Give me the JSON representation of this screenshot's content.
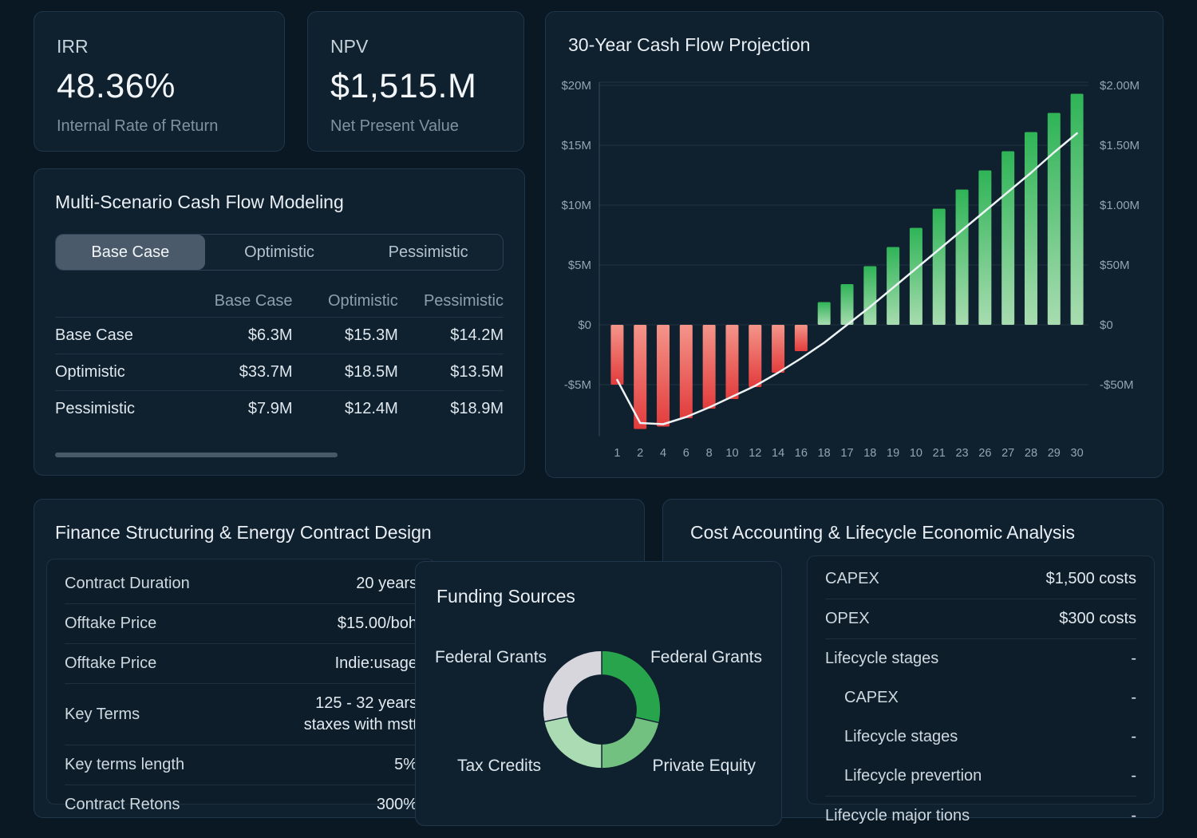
{
  "stat_cards": [
    {
      "label": "IRR",
      "value": "48.36%",
      "sub": "Internal Rate of Return"
    },
    {
      "label": "NPV",
      "value": "$1,515.M",
      "sub": "Net Present Value"
    }
  ],
  "scenario_panel": {
    "title": "Multi-Scenario Cash Flow Modeling",
    "tabs": [
      {
        "label": "Base Case",
        "active": true
      },
      {
        "label": "Optimistic",
        "active": false
      },
      {
        "label": "Pessimistic",
        "active": false
      }
    ],
    "table": {
      "columns": [
        "Base Case",
        "Optimistic",
        "Pessimistic"
      ],
      "rows": [
        {
          "label": "Base Case",
          "values": [
            "$6.3M",
            "$15.3M",
            "$14.2M"
          ]
        },
        {
          "label": "Optimistic",
          "values": [
            "$33.7M",
            "$18.5M",
            "$13.5M"
          ]
        },
        {
          "label": "Pessimistic",
          "values": [
            "$7.9M",
            "$12.4M",
            "$18.9M"
          ]
        }
      ]
    }
  },
  "chart_data": [
    {
      "type": "bar",
      "title": "30-Year Cash Flow Projection",
      "x_labels": [
        "1",
        "2",
        "4",
        "6",
        "8",
        "10",
        "12",
        "14",
        "16",
        "18",
        "17",
        "18",
        "19",
        "10",
        "21",
        "23",
        "26",
        "27",
        "28",
        "29",
        "30"
      ],
      "series": [
        {
          "name": "annual-cash-flow-bars",
          "unit": "$M",
          "values": [
            -5.0,
            -8.7,
            -8.5,
            -7.8,
            -7.0,
            -6.2,
            -5.2,
            -4.0,
            -2.2,
            1.9,
            3.4,
            4.9,
            6.5,
            8.1,
            9.7,
            11.3,
            12.9,
            14.5,
            16.1,
            17.7,
            19.3
          ]
        },
        {
          "name": "cumulative-line",
          "unit": "$M",
          "values": [
            -4.6,
            -8.2,
            -8.3,
            -7.7,
            -6.9,
            -6.0,
            -5.1,
            -4.0,
            -2.8,
            -1.5,
            0.0,
            1.5,
            3.1,
            4.7,
            6.3,
            7.9,
            9.5,
            11.1,
            12.7,
            14.4,
            16.0
          ]
        }
      ],
      "left_axis": {
        "ticks": [
          "$20M",
          "$15M",
          "$10M",
          "$5M",
          "$0",
          "-$5M"
        ],
        "tick_values": [
          20,
          15,
          10,
          5,
          0,
          -5
        ]
      },
      "right_axis": {
        "ticks": [
          "$2.00M",
          "$1.50M",
          "$1.00M",
          "$50M",
          "$0",
          "-$50M"
        ]
      },
      "ylim": [
        -9.3,
        21.3
      ],
      "colors": {
        "neg_top": "#f4958a",
        "neg_bottom": "#e23c3c",
        "pos_top": "#2fb457",
        "pos_bottom": "#a8dcb0",
        "line": "#edf2f5",
        "grid": "rgba(151,180,200,0.14)",
        "axis": "rgba(151,180,200,0.3)",
        "tick_text": "#93a5b1"
      }
    },
    {
      "type": "pie",
      "title": "Funding Sources",
      "slices": [
        {
          "label": "Federal Grants",
          "start_deg": 0,
          "end_deg": 103,
          "color": "#28a44c"
        },
        {
          "label": "Private Equity",
          "start_deg": 103,
          "end_deg": 180,
          "color": "#72c181"
        },
        {
          "label": "Tax Credits",
          "start_deg": 180,
          "end_deg": 258,
          "color": "#aadbb2"
        },
        {
          "label": "Federal Grants",
          "start_deg": 258,
          "end_deg": 360,
          "color": "#d6d6dc"
        }
      ],
      "callout_labels": [
        {
          "text": "Federal Grants",
          "position": "top-left"
        },
        {
          "text": "Federal Grants",
          "position": "top-right"
        },
        {
          "text": "Tax Credits",
          "position": "bottom-left"
        },
        {
          "text": "Private Equity",
          "position": "bottom-right"
        }
      ]
    }
  ],
  "finance_panel": {
    "title": "Finance Structuring & Energy Contract Design",
    "rows": [
      {
        "label": "Contract Duration",
        "value": "20 years"
      },
      {
        "label": "Offtake Price",
        "value": "$15.00/boh",
        "divider": true
      },
      {
        "label": "Offtake Price",
        "value": "Indie:usage",
        "divider": true
      },
      {
        "label": "Key Terms",
        "value": "125 - 32 years",
        "value2": "staxes with mstt",
        "divider": true
      },
      {
        "label": "Key terms length",
        "value": "5%",
        "divider": true
      },
      {
        "label": "Contract Retons",
        "value": "300%",
        "divider": true
      }
    ]
  },
  "funding_panel": {
    "title": "Funding Sources"
  },
  "cost_panel": {
    "title": "Cost Accounting & Lifecycle Economic Analysis",
    "rows": [
      {
        "label": "CAPEX",
        "value": "$1,500 costs"
      },
      {
        "label": "OPEX",
        "value": "$300 costs",
        "divider": true
      },
      {
        "label": "Lifecycle stages",
        "value": "-",
        "divider": true
      },
      {
        "label": "CAPEX",
        "value": "-",
        "indent": true
      },
      {
        "label": "Lifecycle stages",
        "value": "-",
        "indent": true
      },
      {
        "label": "Lifecycle prevertion",
        "value": "-",
        "indent": true
      },
      {
        "label": "Lifecycle major tions",
        "value": "-",
        "divider": true
      }
    ]
  }
}
